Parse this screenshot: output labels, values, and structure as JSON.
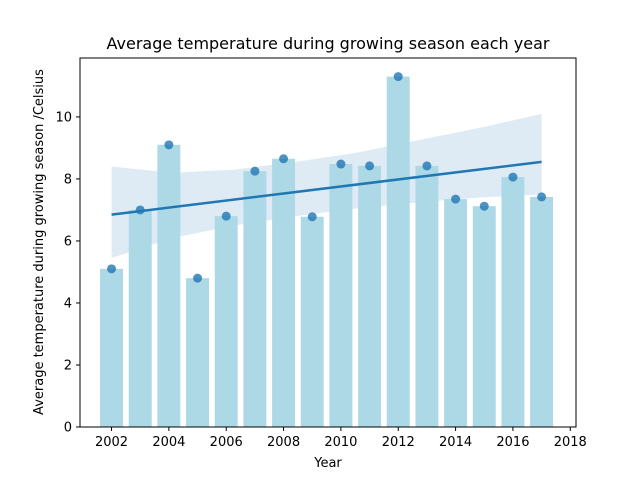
{
  "chart_data": {
    "type": "bar",
    "title": "Average temperature during growing season each year",
    "xlabel": "Year",
    "ylabel": "Average temperature during growing season /Celsius",
    "x": [
      2002,
      2003,
      2004,
      2005,
      2006,
      2007,
      2008,
      2009,
      2010,
      2011,
      2012,
      2013,
      2014,
      2015,
      2016,
      2017
    ],
    "values": [
      5.1,
      7.0,
      9.1,
      4.8,
      6.8,
      8.25,
      8.65,
      6.78,
      8.48,
      8.42,
      11.3,
      8.42,
      7.35,
      7.12,
      8.06,
      7.42
    ],
    "regression": {
      "start": [
        2002,
        6.85
      ],
      "end": [
        2017,
        8.55
      ],
      "ci_lower": [
        5.45,
        6.1,
        6.5,
        6.8,
        7.05,
        7.25,
        7.4,
        7.5
      ],
      "ci_upper": [
        8.4,
        8.2,
        8.3,
        8.55,
        8.85,
        9.25,
        9.65,
        10.1
      ],
      "ci_x": [
        2002,
        2004.14,
        2006.29,
        2008.43,
        2010.57,
        2012.71,
        2014.86,
        2017
      ]
    },
    "xlim": [
      2000.9,
      2018.2
    ],
    "ylim": [
      0,
      11.9
    ],
    "xticks": [
      "2002",
      "2004",
      "2006",
      "2008",
      "2010",
      "2012",
      "2014",
      "2016",
      "2018"
    ],
    "yticks": [
      "0",
      "2",
      "4",
      "6",
      "8",
      "10"
    ],
    "grid": false,
    "colors": {
      "bar": "#add8e6",
      "point": "#1f77b4",
      "line": "#1f77b4",
      "ci": "#1f77b4"
    }
  }
}
